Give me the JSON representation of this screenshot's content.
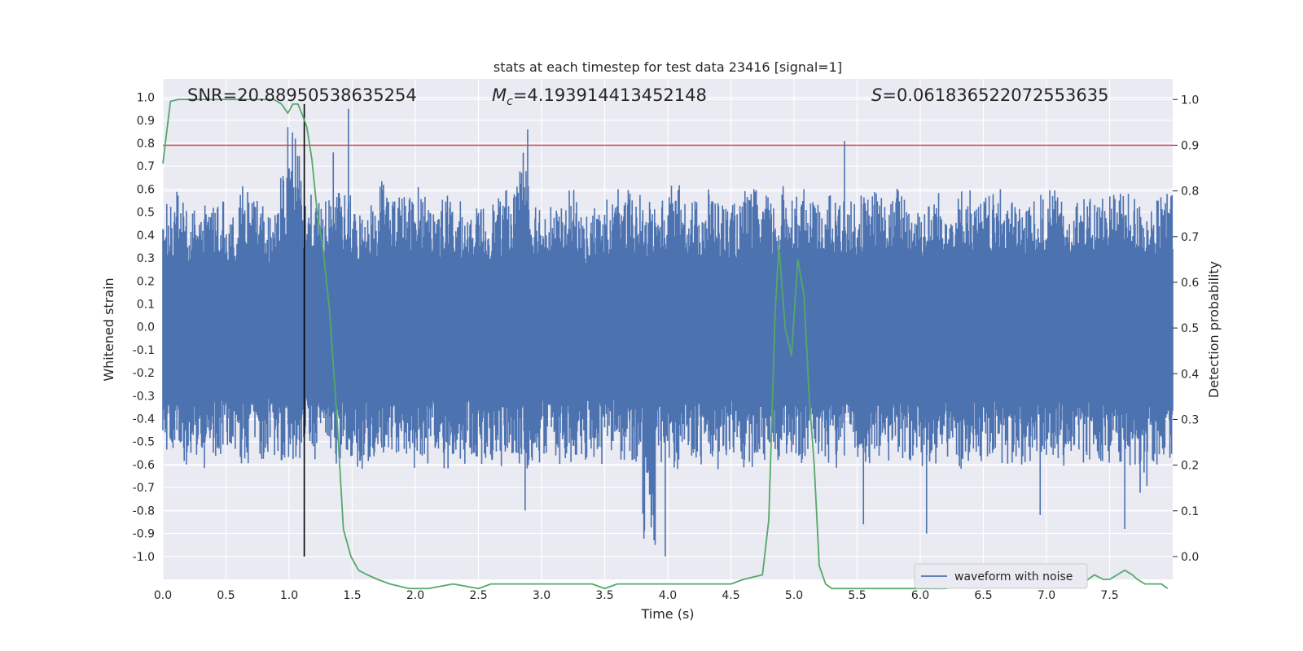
{
  "chart_data": {
    "type": "line",
    "title": "stats at each timestep for test data 23416 [signal=1]",
    "xlabel": "Time (s)",
    "ylabel": "Whitened strain",
    "y2label": "Detection probability",
    "xlim": [
      0.0,
      8.0
    ],
    "ylim": [
      -1.1,
      1.08
    ],
    "y2lim": [
      -0.05,
      1.045
    ],
    "x_ticks": [
      "0.0",
      "0.5",
      "1.0",
      "1.5",
      "2.0",
      "2.5",
      "3.0",
      "3.5",
      "4.0",
      "4.5",
      "5.0",
      "5.5",
      "6.0",
      "6.5",
      "7.0",
      "7.5"
    ],
    "y_ticks": [
      "1.0",
      "0.9",
      "0.8",
      "0.7",
      "0.6",
      "0.5",
      "0.4",
      "0.3",
      "0.2",
      "0.1",
      "0.0",
      "-0.1",
      "-0.2",
      "-0.3",
      "-0.4",
      "-0.5",
      "-0.6",
      "-0.7",
      "-0.8",
      "-0.9",
      "-1.0"
    ],
    "y2_ticks": [
      "1.0",
      "0.9",
      "0.8",
      "0.7",
      "0.6",
      "0.5",
      "0.4",
      "0.3",
      "0.2",
      "0.1",
      "0.0"
    ],
    "grid": true,
    "legend_position": "lower-right",
    "annotations": {
      "snr": "SNR=20.88950538635254",
      "mc_symbol": "M",
      "mc_sub": "c",
      "mc_value": "=4.193914413452148",
      "s_symbol": "S",
      "s_value": "=0.061836522072553635"
    },
    "threshold": 0.9,
    "marker_time": 1.12,
    "series": [
      {
        "name": "waveform with noise",
        "color": "#4c72b0",
        "axis": "left",
        "envelope_upper": [
          0.55,
          0.6,
          0.52,
          0.58,
          0.55,
          0.5,
          0.62,
          0.55,
          0.5,
          0.66,
          0.85,
          0.58,
          0.55,
          0.6,
          0.58,
          0.52,
          0.56,
          0.66,
          0.6,
          0.58,
          0.62,
          0.55,
          0.58,
          0.55,
          0.52,
          0.54,
          0.56,
          0.6,
          0.82,
          0.58,
          0.55,
          0.52,
          0.6,
          0.5,
          0.54,
          0.56,
          0.6,
          0.58,
          0.55,
          0.56,
          0.62,
          0.58,
          0.56,
          0.62,
          0.55,
          0.54,
          0.6,
          0.58,
          0.56,
          0.62,
          0.6,
          0.55,
          0.58,
          0.56,
          0.55,
          0.58,
          0.6,
          0.56,
          0.62,
          0.56,
          0.55,
          0.6,
          0.58,
          0.62,
          0.55,
          0.58,
          0.6,
          0.56,
          0.55,
          0.58,
          0.6,
          0.55,
          0.58,
          0.56,
          0.6,
          0.62,
          0.58,
          0.55,
          0.56,
          0.6
        ],
        "envelope_lower": [
          -0.55,
          -0.6,
          -0.58,
          -0.62,
          -0.58,
          -0.55,
          -0.6,
          -0.58,
          -0.56,
          -0.6,
          -0.58,
          -0.55,
          -0.58,
          -0.6,
          -0.58,
          -0.62,
          -0.6,
          -0.58,
          -0.56,
          -0.62,
          -0.6,
          -0.58,
          -0.62,
          -0.6,
          -0.58,
          -0.6,
          -0.62,
          -0.58,
          -0.62,
          -0.6,
          -0.58,
          -0.6,
          -0.62,
          -0.58,
          -0.6,
          -0.56,
          -0.62,
          -0.6,
          -0.95,
          -0.6,
          -0.62,
          -0.58,
          -0.6,
          -0.62,
          -0.6,
          -0.58,
          -0.62,
          -0.6,
          -0.58,
          -0.6,
          -0.62,
          -0.58,
          -0.6,
          -0.62,
          -0.58,
          -0.6,
          -0.62,
          -0.6,
          -0.58,
          -0.6,
          -0.62,
          -0.6,
          -0.58,
          -0.62,
          -0.6,
          -0.58,
          -0.6,
          -0.62,
          -0.6,
          -0.58,
          -0.6,
          -0.62,
          -0.6,
          -0.58,
          -0.62,
          -0.6,
          -0.62,
          -0.75,
          -0.6,
          -0.58
        ],
        "peaks": [
          {
            "x": 1.47,
            "y": 0.95
          },
          {
            "x": 0.99,
            "y": 0.87
          },
          {
            "x": 2.89,
            "y": 0.86
          },
          {
            "x": 5.4,
            "y": 0.81
          },
          {
            "x": 1.35,
            "y": 0.76
          },
          {
            "x": 3.98,
            "y": -1.0
          },
          {
            "x": 3.9,
            "y": -0.95
          },
          {
            "x": 2.87,
            "y": -0.8
          },
          {
            "x": 6.05,
            "y": -0.9
          },
          {
            "x": 7.62,
            "y": -0.88
          },
          {
            "x": 5.55,
            "y": -0.86
          },
          {
            "x": 6.95,
            "y": -0.82
          }
        ]
      },
      {
        "name": "detection probability",
        "color": "#55a868",
        "axis": "right",
        "x": [
          0.0,
          0.06,
          0.12,
          0.2,
          0.3,
          0.4,
          0.5,
          0.6,
          0.7,
          0.8,
          0.88,
          0.94,
          0.99,
          1.03,
          1.07,
          1.1,
          1.14,
          1.18,
          1.22,
          1.27,
          1.32,
          1.38,
          1.43,
          1.49,
          1.55,
          1.62,
          1.7,
          1.8,
          1.95,
          2.1,
          2.3,
          2.5,
          2.6,
          2.7,
          2.8,
          2.9,
          3.0,
          3.2,
          3.4,
          3.5,
          3.6,
          3.8,
          4.0,
          4.2,
          4.4,
          4.5,
          4.6,
          4.75,
          4.8,
          4.85,
          4.88,
          4.93,
          4.98,
          5.03,
          5.08,
          5.12,
          5.16,
          5.2,
          5.25,
          5.3,
          5.4,
          5.6,
          5.8,
          6.0,
          6.2,
          6.4,
          6.5,
          6.56,
          6.6,
          6.7,
          6.8,
          6.9,
          7.0,
          7.1,
          7.2,
          7.28,
          7.33,
          7.38,
          7.45,
          7.5,
          7.56,
          7.62,
          7.68,
          7.72,
          7.78,
          7.85,
          7.91,
          7.96
        ],
        "values": [
          0.86,
          0.996,
          1.0,
          1.0,
          1.0,
          1.0,
          1.0,
          1.0,
          1.0,
          1.0,
          1.0,
          0.99,
          0.97,
          0.99,
          0.99,
          0.97,
          0.94,
          0.87,
          0.76,
          0.67,
          0.54,
          0.3,
          0.06,
          0.0,
          -0.03,
          -0.04,
          -0.05,
          -0.06,
          -0.07,
          -0.07,
          -0.06,
          -0.07,
          -0.06,
          -0.06,
          -0.06,
          -0.06,
          -0.06,
          -0.06,
          -0.06,
          -0.07,
          -0.06,
          -0.06,
          -0.06,
          -0.06,
          -0.06,
          -0.06,
          -0.05,
          -0.04,
          0.08,
          0.53,
          0.68,
          0.5,
          0.44,
          0.65,
          0.57,
          0.35,
          0.2,
          -0.02,
          -0.06,
          -0.07,
          -0.07,
          -0.07,
          -0.07,
          -0.07,
          -0.07,
          -0.06,
          -0.06,
          -0.06,
          -0.06,
          -0.06,
          -0.06,
          -0.06,
          -0.06,
          -0.06,
          -0.06,
          -0.06,
          -0.05,
          -0.04,
          -0.05,
          -0.05,
          -0.04,
          -0.03,
          -0.04,
          -0.05,
          -0.06,
          -0.06,
          -0.06,
          -0.07
        ]
      }
    ]
  }
}
